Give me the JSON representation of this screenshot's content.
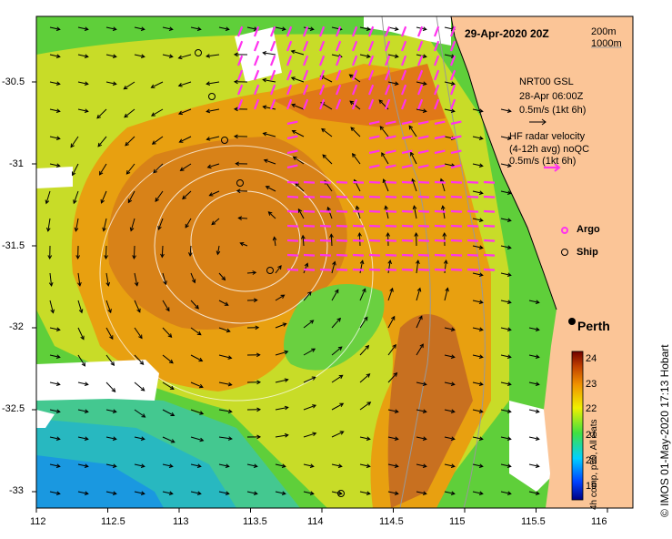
{
  "title": "29-Apr-2020 20Z",
  "bathy_legend": [
    "200m",
    "1000m"
  ],
  "model_legend": [
    "NRT00 GSL",
    "28-Apr 06:00Z",
    "0.5m/s (1kt 6h)"
  ],
  "radar_legend": [
    "HF radar velocity",
    "(4-12h avg) noQC",
    "0.5m/s (1kt 6h)"
  ],
  "symbols": {
    "argo": "Argo",
    "ship": "Ship"
  },
  "city": "Perth",
  "x_ticks": [
    "112",
    "112.5",
    "113",
    "113.5",
    "114",
    "114.5",
    "115",
    "115.5",
    "116"
  ],
  "y_ticks": [
    "-30.5",
    "-31",
    "-31.5",
    "-32",
    "-32.5",
    "-33"
  ],
  "colorbar": {
    "ticks": [
      "24",
      "23",
      "22",
      "21",
      "20",
      "19"
    ],
    "label": "4h comp, p50, All Sats"
  },
  "credit": "© IMOS 01-May-2020 17:13 Hobart",
  "colors": {
    "warm": "#e38f1a",
    "land": "#fbc597",
    "radar": "#ff33ee"
  }
}
